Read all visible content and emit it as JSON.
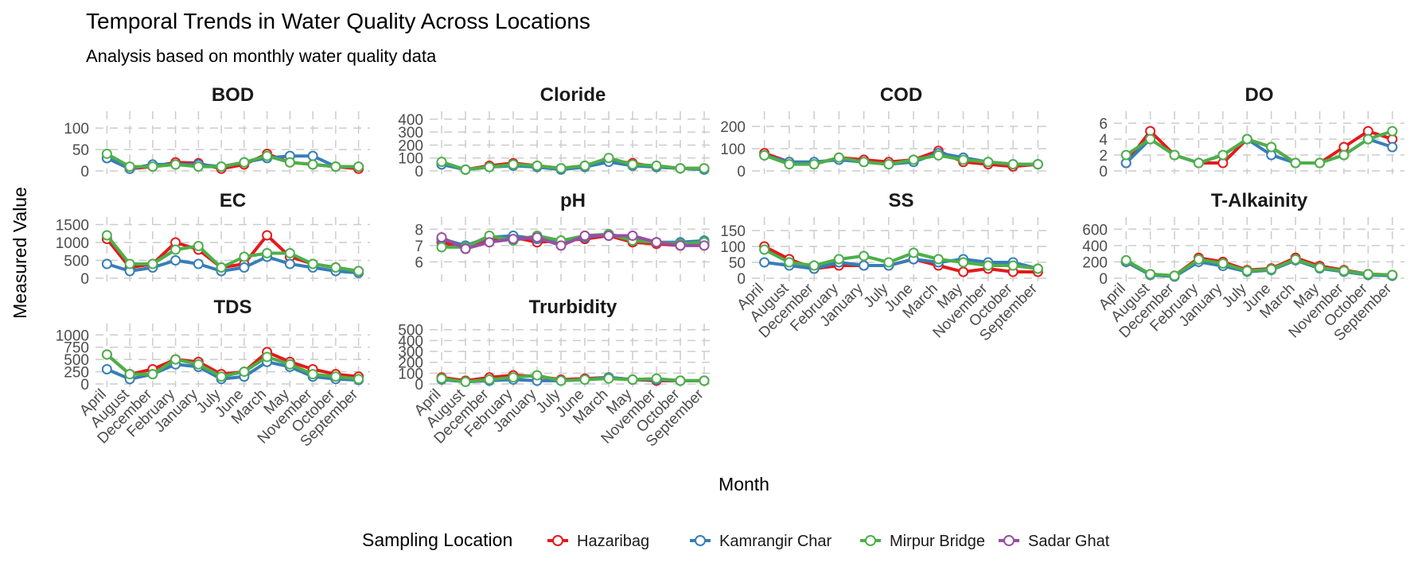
{
  "title": "Temporal Trends in Water Quality Across Locations",
  "subtitle": "Analysis based on monthly water quality data",
  "xlabel": "Month",
  "ylabel": "Measured Value",
  "legend": {
    "title": "Sampling Location",
    "position": "bottom",
    "items": [
      {
        "name": "Hazaribag",
        "color": "#E41A1C"
      },
      {
        "name": "Kamrangir Char",
        "color": "#377EB8"
      },
      {
        "name": "Mirpur Bridge",
        "color": "#4DAF4A"
      },
      {
        "name": "Sadar Ghat",
        "color": "#984EA3"
      }
    ]
  },
  "chart_data": {
    "type": "line",
    "layout": "facet-grid, free y scales, 4 columns",
    "grid": true,
    "categories": [
      "April",
      "August",
      "December",
      "February",
      "January",
      "July",
      "June",
      "March",
      "May",
      "November",
      "October",
      "September"
    ],
    "panels": [
      {
        "title": "BOD",
        "ylim": [
          0,
          130
        ],
        "yticks": [
          0,
          50,
          100
        ],
        "series": [
          {
            "name": "Hazaribag",
            "values": [
              30,
              5,
              10,
              20,
              18,
              5,
              15,
              40,
              20,
              15,
              10,
              5
            ]
          },
          {
            "name": "Kamrangir Char",
            "values": [
              30,
              5,
              15,
              15,
              15,
              10,
              20,
              30,
              35,
              35,
              10,
              10
            ]
          },
          {
            "name": "Mirpur Bridge",
            "values": [
              40,
              10,
              10,
              15,
              10,
              10,
              20,
              35,
              20,
              15,
              10,
              10
            ]
          }
        ]
      },
      {
        "title": "Cloride",
        "ylim": [
          0,
          430
        ],
        "yticks": [
          0,
          100,
          200,
          300,
          400
        ],
        "series": [
          {
            "name": "Hazaribag",
            "values": [
              60,
              10,
              40,
              60,
              40,
              20,
              40,
              80,
              60,
              30,
              20,
              20
            ]
          },
          {
            "name": "Kamrangir Char",
            "values": [
              50,
              10,
              30,
              40,
              30,
              10,
              30,
              70,
              40,
              30,
              20,
              10
            ]
          },
          {
            "name": "Mirpur Bridge",
            "values": [
              70,
              10,
              30,
              50,
              40,
              20,
              40,
              100,
              50,
              40,
              20,
              20
            ]
          }
        ]
      },
      {
        "title": "COD",
        "ylim": [
          0,
          250
        ],
        "yticks": [
          0,
          100,
          200
        ],
        "series": [
          {
            "name": "Hazaribag",
            "values": [
              80,
              40,
              30,
              60,
              50,
              40,
              50,
              90,
              40,
              30,
              20,
              30
            ]
          },
          {
            "name": "Kamrangir Char",
            "values": [
              70,
              40,
              40,
              50,
              40,
              30,
              40,
              80,
              60,
              40,
              30,
              30
            ]
          },
          {
            "name": "Mirpur Bridge",
            "values": [
              70,
              30,
              30,
              60,
              40,
              30,
              50,
              70,
              50,
              40,
              30,
              30
            ]
          }
        ]
      },
      {
        "title": "DO",
        "ylim": [
          0,
          7
        ],
        "yticks": [
          0,
          2,
          4,
          6
        ],
        "series": [
          {
            "name": "Hazaribag",
            "values": [
              1,
              5,
              2,
              1,
              1,
              4,
              3,
              1,
              1,
              3,
              5,
              4
            ]
          },
          {
            "name": "Kamrangir Char",
            "values": [
              1,
              4,
              2,
              1,
              2,
              4,
              2,
              1,
              1,
              2,
              4,
              3
            ]
          },
          {
            "name": "Mirpur Bridge",
            "values": [
              2,
              4,
              2,
              1,
              2,
              4,
              3,
              1,
              1,
              2,
              4,
              5
            ]
          }
        ]
      },
      {
        "title": "EC",
        "ylim": [
          0,
          1600
        ],
        "yticks": [
          0,
          500,
          1000,
          1500
        ],
        "series": [
          {
            "name": "Hazaribag",
            "values": [
              1100,
              300,
              400,
              1000,
              800,
              300,
              400,
              1200,
              600,
              400,
              300,
              200
            ]
          },
          {
            "name": "Kamrangir Char",
            "values": [
              400,
              200,
              300,
              500,
              400,
              200,
              300,
              600,
              400,
              300,
              200,
              150
            ]
          },
          {
            "name": "Mirpur Bridge",
            "values": [
              1200,
              400,
              400,
              800,
              900,
              300,
              600,
              700,
              700,
              400,
              300,
              200
            ]
          }
        ]
      },
      {
        "title": "pH",
        "ylim": [
          5,
          8.5
        ],
        "yticks": [
          6,
          7,
          8
        ],
        "series": [
          {
            "name": "Hazaribag",
            "values": [
              7.2,
              6.8,
              7.3,
              7.5,
              7.2,
              7.3,
              7.4,
              7.6,
              7.2,
              7.1,
              7,
              7.1
            ]
          },
          {
            "name": "Kamrangir Char",
            "values": [
              7.4,
              7,
              7.5,
              7.6,
              7.4,
              7.2,
              7.5,
              7.7,
              7.4,
              7.2,
              7.2,
              7.3
            ]
          },
          {
            "name": "Mirpur Bridge",
            "values": [
              6.9,
              6.9,
              7.6,
              7.3,
              7.6,
              7.3,
              7.6,
              7.7,
              7.3,
              7.2,
              7.1,
              7.2
            ]
          },
          {
            "name": "Sadar Ghat",
            "values": [
              7.5,
              6.8,
              7.2,
              7.4,
              7.5,
              7,
              7.6,
              7.6,
              7.6,
              7.2,
              7,
              7
            ]
          }
        ]
      },
      {
        "title": "SS",
        "ylim": [
          0,
          180
        ],
        "yticks": [
          0,
          50,
          100,
          150
        ],
        "series": [
          {
            "name": "Hazaribag",
            "values": [
              100,
              60,
              30,
              40,
              40,
              40,
              60,
              40,
              20,
              30,
              20,
              20
            ]
          },
          {
            "name": "Kamrangir Char",
            "values": [
              50,
              40,
              30,
              50,
              40,
              40,
              60,
              50,
              60,
              50,
              50,
              30
            ]
          },
          {
            "name": "Mirpur Bridge",
            "values": [
              90,
              50,
              40,
              60,
              70,
              50,
              80,
              60,
              50,
              40,
              40,
              30
            ]
          }
        ]
      },
      {
        "title": "T-Alkainity",
        "ylim": [
          0,
          700
        ],
        "yticks": [
          0,
          200,
          400,
          600
        ],
        "series": [
          {
            "name": "Hazaribag",
            "values": [
              200,
              50,
              30,
              250,
              200,
              100,
              120,
              250,
              150,
              100,
              50,
              40
            ]
          },
          {
            "name": "Kamrangir Char",
            "values": [
              200,
              40,
              20,
              200,
              150,
              80,
              100,
              220,
              120,
              80,
              40,
              30
            ]
          },
          {
            "name": "Mirpur Bridge",
            "values": [
              220,
              50,
              30,
              230,
              180,
              90,
              110,
              230,
              130,
              90,
              50,
              40
            ]
          }
        ]
      },
      {
        "title": "TDS",
        "ylim": [
          0,
          1150
        ],
        "yticks": [
          0,
          250,
          500,
          750,
          1000
        ],
        "series": [
          {
            "name": "Hazaribag",
            "values": [
              600,
              200,
              300,
              500,
              450,
              200,
              250,
              650,
              450,
              300,
              200,
              150
            ]
          },
          {
            "name": "Kamrangir Char",
            "values": [
              300,
              100,
              200,
              400,
              350,
              100,
              150,
              450,
              350,
              150,
              100,
              80
            ]
          },
          {
            "name": "Mirpur Bridge",
            "values": [
              600,
              200,
              200,
              500,
              400,
              150,
              250,
              550,
              400,
              200,
              150,
              100
            ]
          }
        ]
      },
      {
        "title": "Trurbidity",
        "ylim": [
          0,
          520
        ],
        "yticks": [
          0,
          100,
          200,
          300,
          400,
          500
        ],
        "series": [
          {
            "name": "Hazaribag",
            "values": [
              60,
              30,
              60,
              80,
              70,
              40,
              50,
              60,
              40,
              30,
              30,
              30
            ]
          },
          {
            "name": "Kamrangir Char",
            "values": [
              40,
              20,
              30,
              40,
              30,
              30,
              40,
              60,
              40,
              40,
              30,
              30
            ]
          },
          {
            "name": "Mirpur Bridge",
            "values": [
              50,
              20,
              40,
              60,
              80,
              30,
              40,
              50,
              40,
              50,
              30,
              30
            ]
          }
        ]
      }
    ]
  }
}
